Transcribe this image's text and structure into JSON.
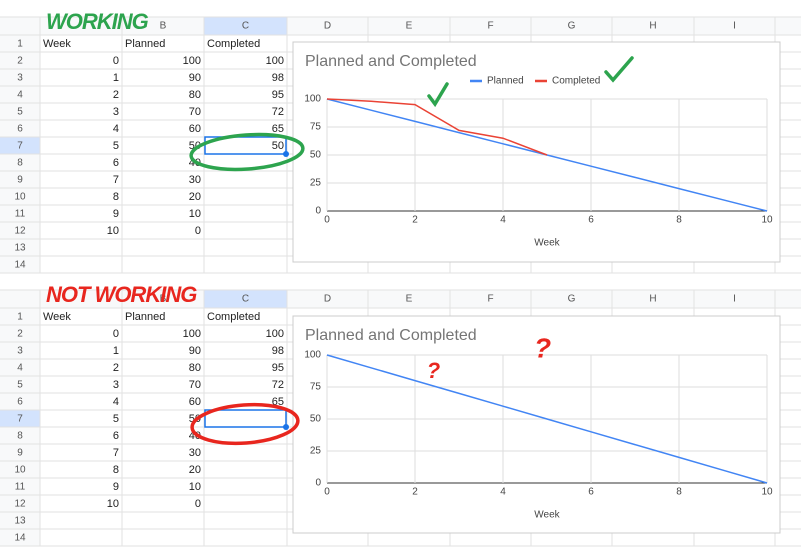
{
  "panels": [
    {
      "annotation": "WORKING",
      "annotation_color": "#2da44e",
      "column_headers": [
        null,
        "B",
        "C",
        "D",
        "E",
        "F",
        "G",
        "H",
        "I"
      ],
      "row_headers": [
        1,
        2,
        3,
        4,
        5,
        6,
        7,
        8,
        9,
        10,
        11,
        12,
        13,
        14
      ],
      "rows": [
        [
          "Week",
          "Planned",
          "Completed"
        ],
        [
          0,
          100,
          100
        ],
        [
          1,
          90,
          98
        ],
        [
          2,
          80,
          95
        ],
        [
          3,
          70,
          72
        ],
        [
          4,
          60,
          65
        ],
        [
          5,
          50,
          50
        ],
        [
          6,
          40,
          null
        ],
        [
          7,
          30,
          null
        ],
        [
          8,
          20,
          null
        ],
        [
          9,
          10,
          null
        ],
        [
          10,
          0,
          null
        ],
        [
          null,
          null,
          null
        ],
        [
          null,
          null,
          null
        ]
      ],
      "chart": {
        "type": "line",
        "title": "Planned and Completed",
        "x_label": "Week",
        "x": [
          0,
          1,
          2,
          3,
          4,
          5,
          6,
          7,
          8,
          9,
          10
        ],
        "xlim": [
          0,
          10
        ],
        "xticks": [
          0,
          2,
          4,
          6,
          8,
          10
        ],
        "ylim": [
          0,
          100
        ],
        "yticks": [
          0,
          25,
          50,
          75,
          100
        ],
        "grid": true,
        "legend": "top",
        "series": [
          {
            "name": "Planned",
            "color": "#4285f4",
            "values": [
              100,
              90,
              80,
              70,
              60,
              50,
              40,
              30,
              20,
              10,
              0
            ]
          },
          {
            "name": "Completed",
            "color": "#ea4335",
            "values": [
              100,
              98,
              95,
              72,
              65,
              50,
              null,
              null,
              null,
              null,
              null
            ]
          }
        ]
      }
    },
    {
      "annotation": "NOT WORKING",
      "annotation_color": "#e8261e",
      "column_headers": [
        null,
        "B",
        "C",
        "D",
        "E",
        "F",
        "G",
        "H",
        "I"
      ],
      "row_headers": [
        1,
        2,
        3,
        4,
        5,
        6,
        7,
        8,
        9,
        10,
        11,
        12,
        13,
        14
      ],
      "rows": [
        [
          "Week",
          "Planned",
          "Completed"
        ],
        [
          0,
          100,
          100
        ],
        [
          1,
          90,
          98
        ],
        [
          2,
          80,
          95
        ],
        [
          3,
          70,
          72
        ],
        [
          4,
          60,
          65
        ],
        [
          5,
          50,
          null
        ],
        [
          6,
          40,
          null
        ],
        [
          7,
          30,
          null
        ],
        [
          8,
          20,
          null
        ],
        [
          9,
          10,
          null
        ],
        [
          10,
          0,
          null
        ],
        [
          null,
          null,
          null
        ],
        [
          null,
          null,
          null
        ]
      ],
      "chart": {
        "type": "line",
        "title": "Planned and Completed",
        "x_label": "Week",
        "x": [
          0,
          1,
          2,
          3,
          4,
          5,
          6,
          7,
          8,
          9,
          10
        ],
        "xlim": [
          0,
          10
        ],
        "xticks": [
          0,
          2,
          4,
          6,
          8,
          10
        ],
        "ylim": [
          0,
          100
        ],
        "yticks": [
          0,
          25,
          50,
          75,
          100
        ],
        "grid": true,
        "legend": false,
        "series": [
          {
            "name": "Planned",
            "color": "#4285f4",
            "values": [
              100,
              90,
              80,
              70,
              60,
              50,
              40,
              30,
              20,
              10,
              0
            ]
          }
        ]
      },
      "marks": [
        "?",
        "?"
      ]
    }
  ]
}
